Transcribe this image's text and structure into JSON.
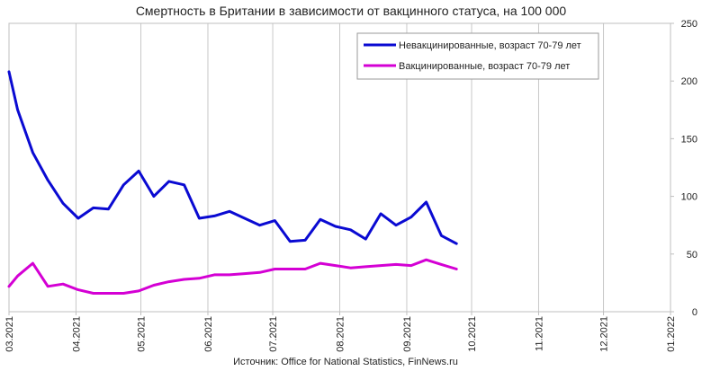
{
  "chart_data": {
    "type": "line",
    "title": "Смертность в Британии в зависимости от вакцинного статуса, на 100 000",
    "source": "Источник: Office for National Statistics, FinNews.ru",
    "x_axis": {
      "type": "date",
      "range": [
        "2021-03-01",
        "2022-01-01"
      ],
      "tick_labels": [
        "03.2021",
        "04.2021",
        "05.2021",
        "06.2021",
        "07.2021",
        "08.2021",
        "09.2021",
        "10.2021",
        "11.2021",
        "12.2021",
        "01.2022"
      ],
      "tick_dates": [
        "2021-03-01",
        "2021-04-01",
        "2021-05-01",
        "2021-06-01",
        "2021-07-01",
        "2021-08-01",
        "2021-09-01",
        "2021-10-01",
        "2021-11-01",
        "2021-12-01",
        "2022-01-01"
      ],
      "label_orientation": "vertical"
    },
    "y_axis": {
      "position": "right",
      "range": [
        0,
        250
      ],
      "tick_labels": [
        "0",
        "50",
        "100",
        "150",
        "200",
        "250"
      ],
      "tick_values": [
        0,
        50,
        100,
        150,
        200,
        250
      ]
    },
    "grid": "vertical",
    "legend_position": "top-right",
    "series": [
      {
        "name": "Невакцинированные, возраст 70-79 лет",
        "color": "#0a0ad2",
        "points": [
          [
            "2021-03-01",
            208
          ],
          [
            "2021-03-05",
            175
          ],
          [
            "2021-03-12",
            138
          ],
          [
            "2021-03-19",
            114
          ],
          [
            "2021-03-26",
            94
          ],
          [
            "2021-04-02",
            81
          ],
          [
            "2021-04-09",
            90
          ],
          [
            "2021-04-16",
            89
          ],
          [
            "2021-04-23",
            110
          ],
          [
            "2021-04-30",
            122
          ],
          [
            "2021-05-07",
            100
          ],
          [
            "2021-05-14",
            113
          ],
          [
            "2021-05-21",
            110
          ],
          [
            "2021-05-28",
            81
          ],
          [
            "2021-06-04",
            83
          ],
          [
            "2021-06-11",
            87
          ],
          [
            "2021-06-18",
            81
          ],
          [
            "2021-06-25",
            75
          ],
          [
            "2021-07-02",
            79
          ],
          [
            "2021-07-09",
            61
          ],
          [
            "2021-07-16",
            62
          ],
          [
            "2021-07-23",
            80
          ],
          [
            "2021-07-30",
            74
          ],
          [
            "2021-08-06",
            71
          ],
          [
            "2021-08-13",
            63
          ],
          [
            "2021-08-20",
            85
          ],
          [
            "2021-08-27",
            75
          ],
          [
            "2021-09-03",
            82
          ],
          [
            "2021-09-10",
            95
          ],
          [
            "2021-09-17",
            66
          ],
          [
            "2021-09-24",
            59
          ]
        ]
      },
      {
        "name": "Вакцинированные, возраст 70-79 лет",
        "color": "#d400d4",
        "points": [
          [
            "2021-03-01",
            22
          ],
          [
            "2021-03-05",
            31
          ],
          [
            "2021-03-12",
            42
          ],
          [
            "2021-03-19",
            22
          ],
          [
            "2021-03-26",
            24
          ],
          [
            "2021-04-02",
            19
          ],
          [
            "2021-04-09",
            16
          ],
          [
            "2021-04-16",
            16
          ],
          [
            "2021-04-23",
            16
          ],
          [
            "2021-04-30",
            18
          ],
          [
            "2021-05-07",
            23
          ],
          [
            "2021-05-14",
            26
          ],
          [
            "2021-05-21",
            28
          ],
          [
            "2021-05-28",
            29
          ],
          [
            "2021-06-04",
            32
          ],
          [
            "2021-06-11",
            32
          ],
          [
            "2021-06-18",
            33
          ],
          [
            "2021-06-25",
            34
          ],
          [
            "2021-07-02",
            37
          ],
          [
            "2021-07-09",
            37
          ],
          [
            "2021-07-16",
            37
          ],
          [
            "2021-07-23",
            42
          ],
          [
            "2021-07-30",
            40
          ],
          [
            "2021-08-06",
            38
          ],
          [
            "2021-08-13",
            39
          ],
          [
            "2021-08-20",
            40
          ],
          [
            "2021-08-27",
            41
          ],
          [
            "2021-09-03",
            40
          ],
          [
            "2021-09-10",
            45
          ],
          [
            "2021-09-17",
            41
          ],
          [
            "2021-09-24",
            37
          ]
        ]
      }
    ]
  }
}
